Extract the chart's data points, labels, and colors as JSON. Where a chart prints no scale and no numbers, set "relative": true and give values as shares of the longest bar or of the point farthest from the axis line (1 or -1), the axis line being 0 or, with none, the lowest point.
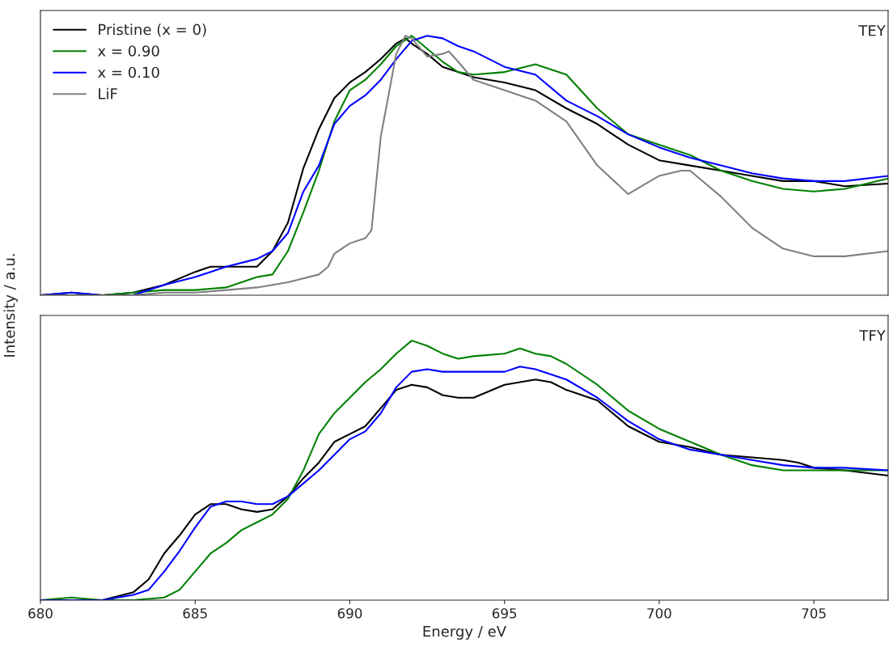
{
  "chart_data": [
    {
      "type": "line",
      "relative": true,
      "ylabel": "Intensity / a.u.",
      "annotations": [
        "TEY"
      ],
      "xlim": [
        680,
        707.4
      ],
      "tick_labels": false,
      "legend": "top left",
      "grid": false,
      "marker": "none",
      "line_style": "solid",
      "series": [
        {
          "name": "Pristine (x = 0)",
          "color": "#000000",
          "x": [
            680,
            681,
            682,
            683,
            684,
            685,
            685.5,
            686,
            687,
            687.5,
            688,
            688.5,
            689,
            689.5,
            690,
            690.5,
            691,
            691.5,
            691.8,
            692,
            692.5,
            693,
            693.5,
            694,
            695,
            696,
            697,
            698,
            699,
            700,
            701,
            702,
            703,
            704,
            705,
            706,
            707.4
          ],
          "values": [
            0,
            0.01,
            0,
            0.01,
            0.04,
            0.09,
            0.11,
            0.11,
            0.11,
            0.17,
            0.28,
            0.49,
            0.64,
            0.76,
            0.82,
            0.86,
            0.91,
            0.97,
            0.99,
            0.97,
            0.93,
            0.88,
            0.86,
            0.84,
            0.82,
            0.79,
            0.72,
            0.66,
            0.58,
            0.52,
            0.5,
            0.48,
            0.46,
            0.44,
            0.44,
            0.42,
            0.43
          ]
        },
        {
          "name": "x = 0.90",
          "color": "#008000",
          "x": [
            680,
            681,
            682,
            683,
            684,
            685,
            686,
            687,
            687.5,
            688,
            688.5,
            689,
            689.5,
            690,
            690.5,
            691,
            691.5,
            692,
            692.5,
            693,
            693.5,
            694,
            695,
            696,
            697,
            698,
            699,
            700,
            701,
            702,
            703,
            704,
            705,
            706,
            707.4
          ],
          "values": [
            0,
            0,
            0,
            0.01,
            0.02,
            0.02,
            0.03,
            0.07,
            0.08,
            0.17,
            0.32,
            0.48,
            0.67,
            0.79,
            0.83,
            0.89,
            0.96,
            1.0,
            0.95,
            0.9,
            0.86,
            0.85,
            0.86,
            0.89,
            0.85,
            0.72,
            0.62,
            0.58,
            0.54,
            0.48,
            0.44,
            0.41,
            0.4,
            0.41,
            0.45
          ]
        },
        {
          "name": "x = 0.10",
          "color": "#0000ff",
          "x": [
            680,
            681,
            682,
            683,
            684,
            685,
            686,
            687,
            687.5,
            688,
            688.5,
            689,
            689.5,
            690,
            690.5,
            691,
            691.5,
            692,
            692.5,
            693,
            693.5,
            694,
            695,
            696,
            697,
            698,
            699,
            700,
            701,
            702,
            703,
            704,
            705,
            706,
            707.4
          ],
          "values": [
            0,
            0.01,
            0,
            0,
            0.04,
            0.07,
            0.11,
            0.14,
            0.17,
            0.24,
            0.4,
            0.5,
            0.66,
            0.73,
            0.77,
            0.83,
            0.91,
            0.98,
            1.0,
            0.99,
            0.96,
            0.94,
            0.88,
            0.85,
            0.75,
            0.69,
            0.62,
            0.57,
            0.53,
            0.5,
            0.47,
            0.45,
            0.44,
            0.44,
            0.46
          ]
        },
        {
          "name": "LiF",
          "color": "#808080",
          "x": [
            680,
            681,
            682,
            683,
            684,
            685,
            686,
            687,
            688,
            689,
            689.3,
            689.5,
            690,
            690.5,
            690.7,
            691,
            691.5,
            691.8,
            692,
            692.5,
            693,
            693.2,
            693.5,
            694,
            695,
            696,
            697,
            698,
            699,
            700,
            700.7,
            701,
            702,
            703,
            704,
            705,
            706,
            707.4
          ],
          "values": [
            0,
            0,
            0,
            0,
            0.01,
            0.01,
            0.02,
            0.03,
            0.05,
            0.08,
            0.11,
            0.16,
            0.2,
            0.22,
            0.25,
            0.61,
            0.93,
            1.0,
            0.99,
            0.92,
            0.93,
            0.94,
            0.9,
            0.83,
            0.79,
            0.75,
            0.67,
            0.5,
            0.39,
            0.46,
            0.48,
            0.48,
            0.38,
            0.26,
            0.18,
            0.15,
            0.15,
            0.17
          ]
        }
      ]
    },
    {
      "type": "line",
      "relative": true,
      "xlabel": "Energy / eV",
      "annotations": [
        "TFY"
      ],
      "xlim": [
        680,
        707.4
      ],
      "xticks": [
        680,
        685,
        690,
        695,
        700,
        705
      ],
      "tick_labels": "x",
      "grid": false,
      "marker": "none",
      "line_style": "solid",
      "series": [
        {
          "color": "#000000",
          "x": [
            680,
            681,
            682,
            683,
            683.5,
            684,
            684.5,
            685,
            685.5,
            686,
            686.5,
            687,
            687.5,
            688,
            688.5,
            689,
            689.5,
            690,
            690.5,
            691,
            691.5,
            692,
            692.5,
            693,
            693.5,
            694,
            695,
            695.5,
            696,
            696.5,
            697,
            697.5,
            698,
            699,
            700,
            701,
            702,
            703,
            704,
            704.5,
            705,
            706,
            707.4
          ],
          "values": [
            0,
            0,
            0,
            0.03,
            0.08,
            0.18,
            0.25,
            0.33,
            0.37,
            0.37,
            0.35,
            0.34,
            0.35,
            0.4,
            0.47,
            0.53,
            0.61,
            0.64,
            0.67,
            0.74,
            0.81,
            0.83,
            0.82,
            0.79,
            0.78,
            0.78,
            0.83,
            0.84,
            0.85,
            0.84,
            0.81,
            0.79,
            0.77,
            0.67,
            0.61,
            0.59,
            0.56,
            0.55,
            0.54,
            0.53,
            0.51,
            0.5,
            0.48
          ]
        },
        {
          "color": "#008000",
          "x": [
            680,
            681,
            682,
            683,
            684,
            684.5,
            685,
            685.5,
            686,
            686.5,
            687,
            687.5,
            688,
            688.5,
            689,
            689.5,
            690,
            690.5,
            691,
            691.5,
            692,
            692.5,
            693,
            693.5,
            694,
            695,
            695.5,
            696,
            696.5,
            697,
            698,
            699,
            700,
            701,
            702,
            703,
            704,
            705,
            706,
            707.4
          ],
          "values": [
            0,
            0.01,
            0,
            0,
            0.01,
            0.04,
            0.11,
            0.18,
            0.22,
            0.27,
            0.3,
            0.33,
            0.39,
            0.5,
            0.64,
            0.72,
            0.78,
            0.84,
            0.89,
            0.95,
            1.0,
            0.98,
            0.95,
            0.93,
            0.94,
            0.95,
            0.97,
            0.95,
            0.94,
            0.91,
            0.83,
            0.73,
            0.66,
            0.61,
            0.56,
            0.52,
            0.5,
            0.5,
            0.5,
            0.5
          ]
        },
        {
          "color": "#0000ff",
          "x": [
            680,
            681,
            682,
            683,
            683.5,
            684,
            684.5,
            685,
            685.5,
            686,
            686.5,
            687,
            687.5,
            688,
            688.5,
            689,
            689.5,
            690,
            690.5,
            691,
            691.5,
            692,
            692.5,
            693,
            694,
            695,
            695.5,
            696,
            697,
            698,
            699,
            700,
            701,
            702,
            703,
            704,
            705,
            706,
            707.4
          ],
          "values": [
            0,
            0,
            0,
            0.02,
            0.04,
            0.11,
            0.19,
            0.28,
            0.36,
            0.38,
            0.38,
            0.37,
            0.37,
            0.4,
            0.45,
            0.5,
            0.56,
            0.62,
            0.65,
            0.72,
            0.82,
            0.88,
            0.89,
            0.88,
            0.88,
            0.88,
            0.9,
            0.89,
            0.85,
            0.78,
            0.69,
            0.62,
            0.58,
            0.56,
            0.54,
            0.52,
            0.51,
            0.51,
            0.5
          ]
        }
      ]
    }
  ]
}
